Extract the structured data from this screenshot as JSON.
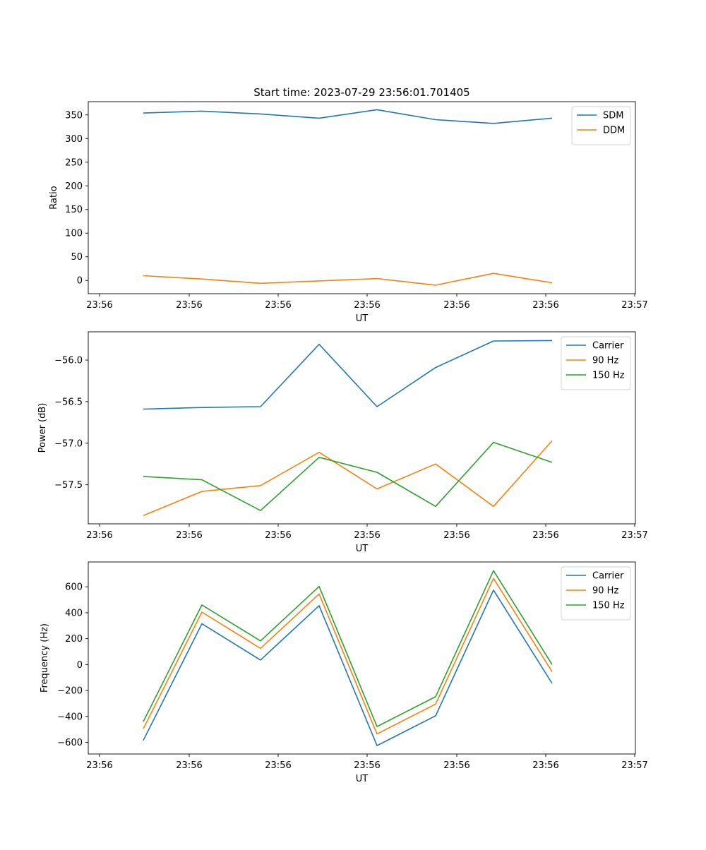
{
  "figure_title": "Start time: 2023-07-29 23:56:01.701405",
  "chart_data": [
    {
      "type": "line",
      "title": "Start time: 2023-07-29 23:56:01.701405",
      "xlabel": "UT",
      "ylabel": "Ratio",
      "x_tick_labels": [
        "23:56",
        "23:56",
        "23:56",
        "23:56",
        "23:56",
        "23:56",
        "23:56"
      ],
      "x_end_label": "23:57",
      "y_ticks": [
        0,
        50,
        100,
        150,
        200,
        250,
        300,
        350
      ],
      "ylim": [
        -28,
        378
      ],
      "x_points": 8,
      "series": [
        {
          "name": "SDM",
          "color": "#1f77b4",
          "values": [
            354,
            358,
            352,
            343,
            361,
            340,
            332,
            343
          ]
        },
        {
          "name": "DDM",
          "color": "#ff7f0e",
          "values": [
            10,
            3,
            -6,
            -1,
            4,
            -10,
            15,
            -5
          ]
        }
      ],
      "legend": "top-right",
      "grid": false
    },
    {
      "type": "line",
      "xlabel": "UT",
      "ylabel": "Power (dB)",
      "x_tick_labels": [
        "23:56",
        "23:56",
        "23:56",
        "23:56",
        "23:56",
        "23:56",
        "23:56"
      ],
      "x_end_label": "23:57",
      "y_ticks": [
        -57.5,
        -57.0,
        -56.5,
        -56.0
      ],
      "ylim": [
        -57.97,
        -55.66
      ],
      "x_points": 8,
      "series": [
        {
          "name": "Carrier",
          "color": "#1f77b4",
          "values": [
            -56.59,
            -56.57,
            -56.56,
            -55.81,
            -56.56,
            -56.09,
            -55.77,
            -55.765
          ]
        },
        {
          "name": "90 Hz",
          "color": "#ff7f0e",
          "values": [
            -57.87,
            -57.58,
            -57.51,
            -57.11,
            -57.55,
            -57.25,
            -57.76,
            -56.97
          ]
        },
        {
          "name": "150 Hz",
          "color": "#2ca02c",
          "values": [
            -57.4,
            -57.44,
            -57.81,
            -57.17,
            -57.35,
            -57.76,
            -56.99,
            -57.23
          ]
        }
      ],
      "legend": "top-right",
      "grid": false
    },
    {
      "type": "line",
      "xlabel": "UT",
      "ylabel": "Frequency (Hz)",
      "x_tick_labels": [
        "23:56",
        "23:56",
        "23:56",
        "23:56",
        "23:56",
        "23:56",
        "23:56"
      ],
      "x_end_label": "23:57",
      "y_ticks": [
        -600,
        -400,
        -200,
        0,
        200,
        400,
        600
      ],
      "ylim": [
        -690,
        792
      ],
      "x_points": 8,
      "series": [
        {
          "name": "Carrier",
          "color": "#1f77b4",
          "values": [
            -585,
            315,
            35,
            455,
            -625,
            -395,
            575,
            -145
          ]
        },
        {
          "name": "90 Hz",
          "color": "#ff7f0e",
          "values": [
            -495,
            405,
            125,
            545,
            -535,
            -305,
            665,
            -55
          ]
        },
        {
          "name": "150 Hz",
          "color": "#2ca02c",
          "values": [
            -440,
            460,
            183,
            603,
            -478,
            -248,
            725,
            0
          ]
        }
      ],
      "legend": "top-right",
      "grid": false
    }
  ]
}
